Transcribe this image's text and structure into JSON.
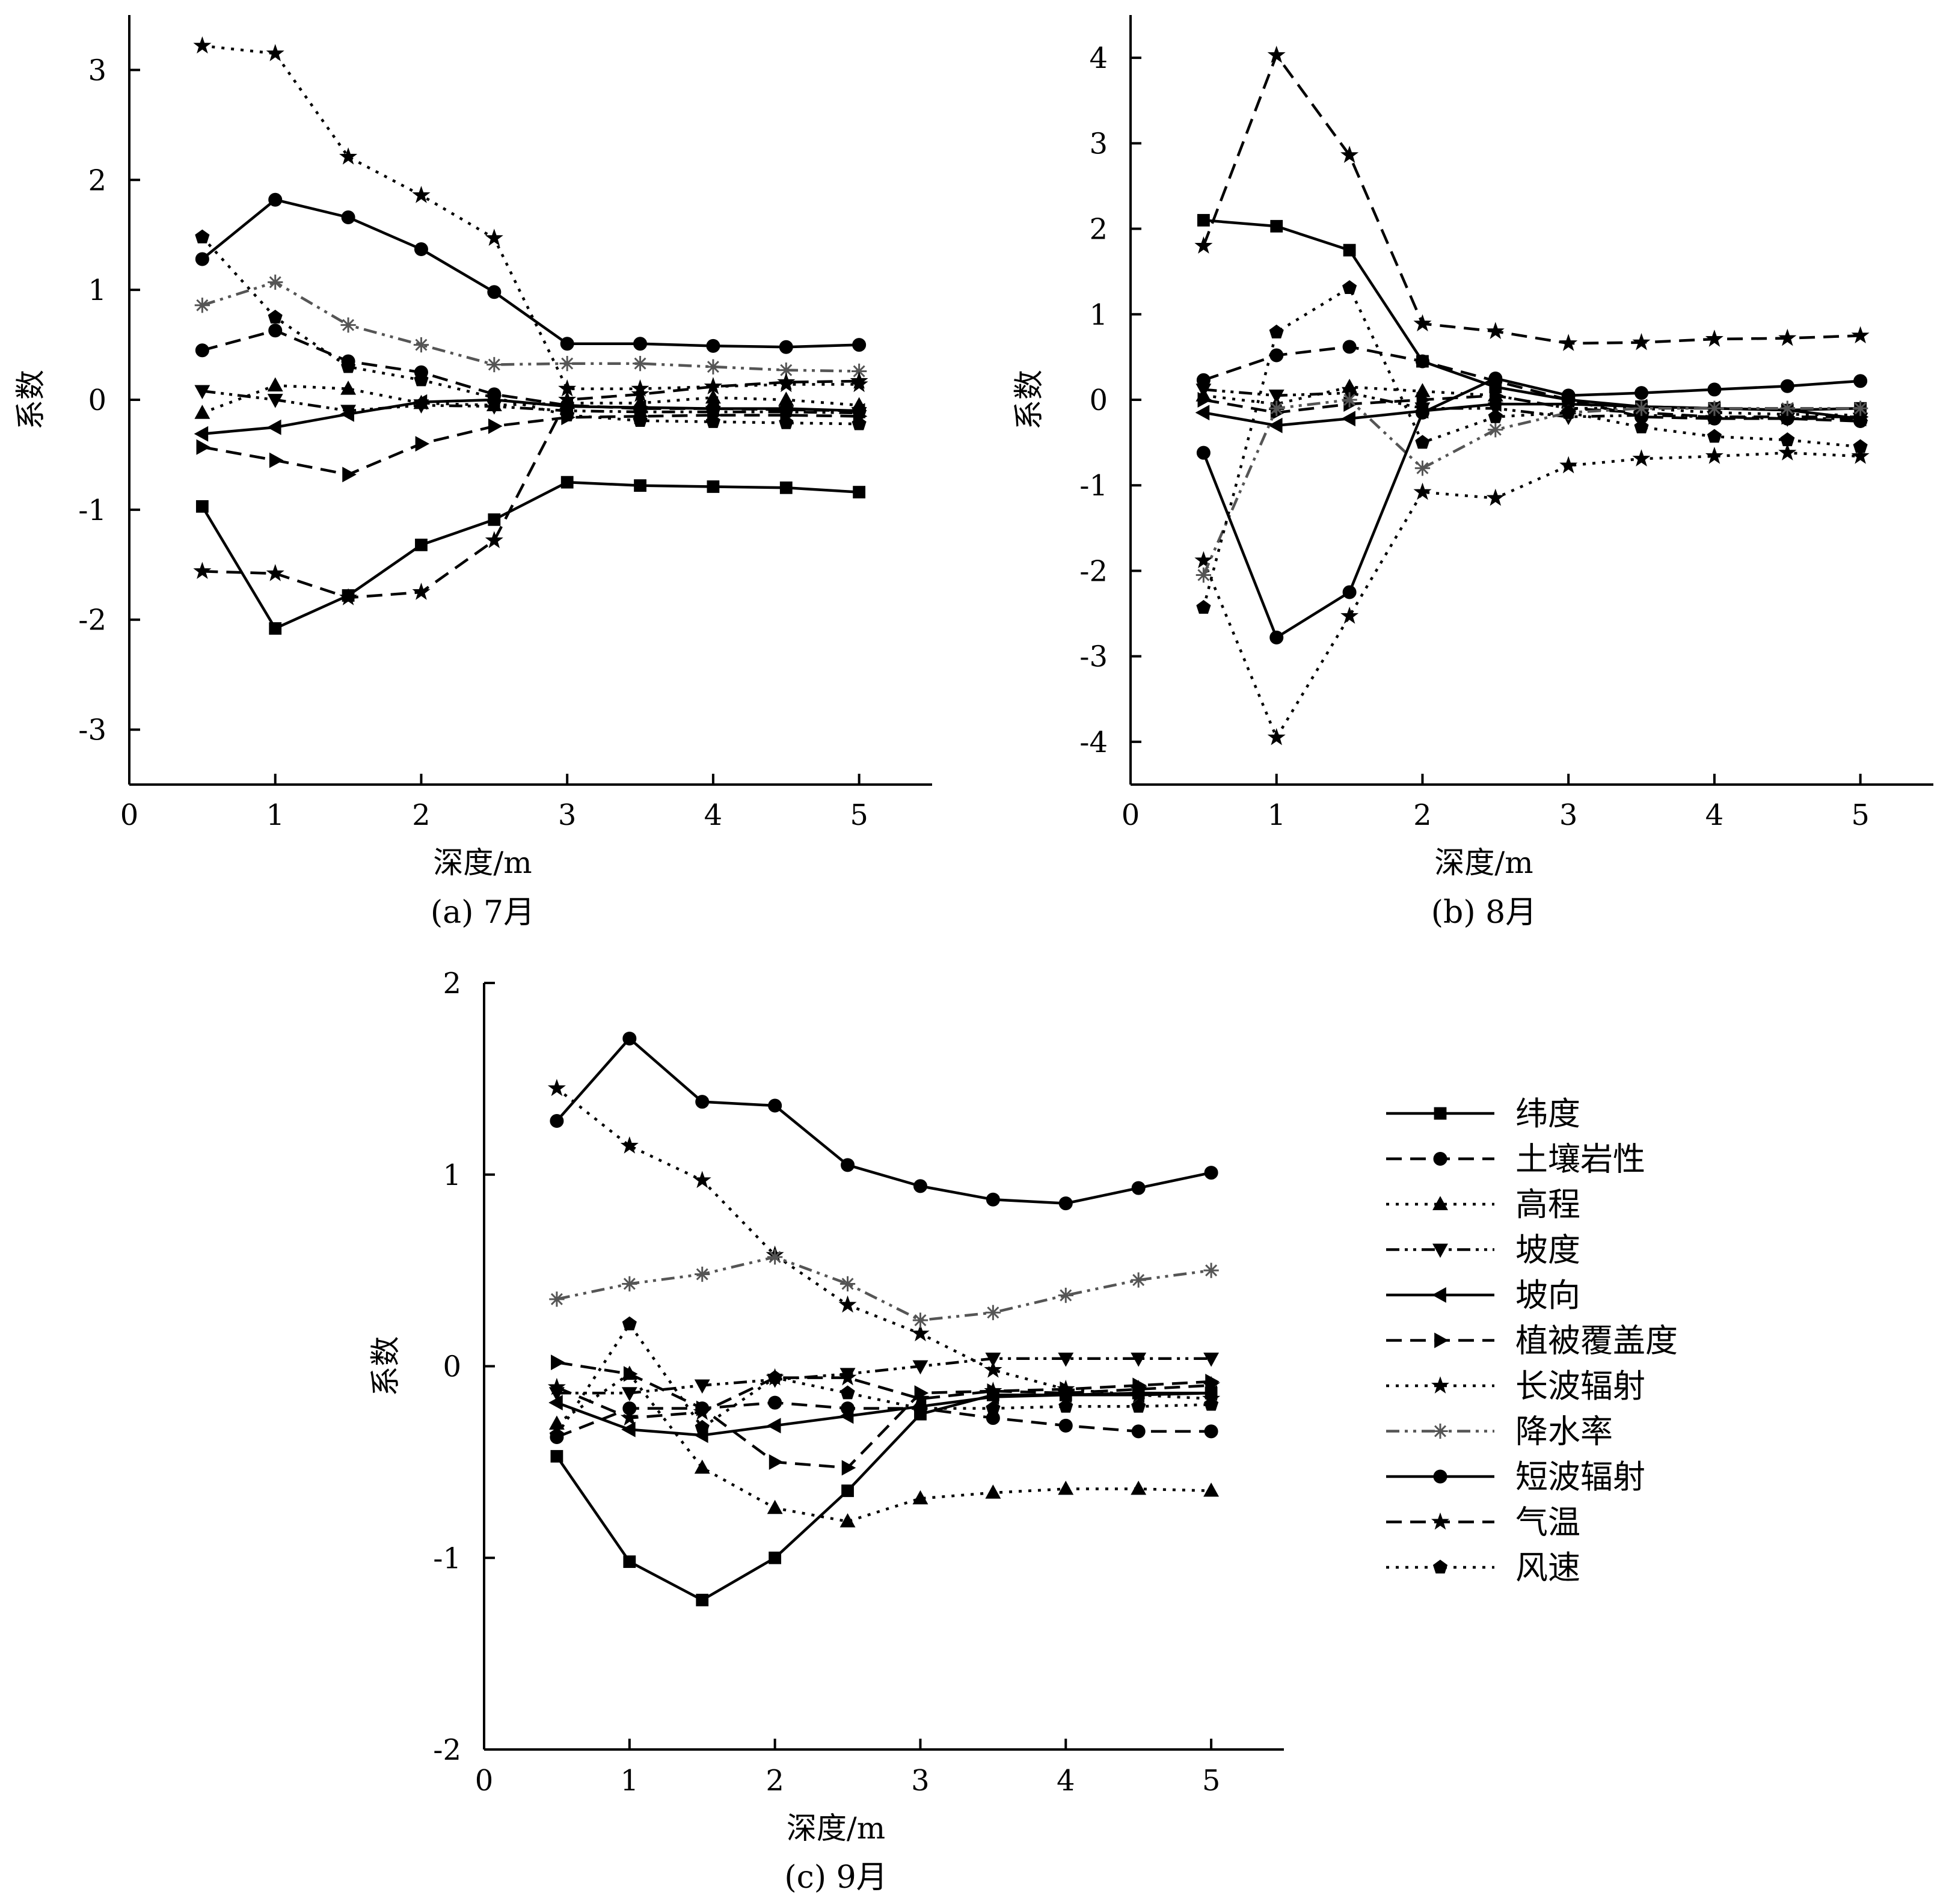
{
  "colors": {
    "ink": "#000000",
    "precip_series": "#555555",
    "background": "#ffffff"
  },
  "legend": {
    "items": [
      {
        "name": "纬度",
        "line": "solid",
        "marker": "square"
      },
      {
        "name": "土壤岩性",
        "line": "dashed",
        "marker": "circle"
      },
      {
        "name": "高程",
        "line": "dotted",
        "marker": "triangle-up"
      },
      {
        "name": "坡度",
        "line": "dashdotdot",
        "marker": "triangle-down"
      },
      {
        "name": "坡向",
        "line": "solid",
        "marker": "triangle-left"
      },
      {
        "name": "植被覆盖度",
        "line": "dashed",
        "marker": "triangle-right"
      },
      {
        "name": "长波辐射",
        "line": "dotted",
        "marker": "star"
      },
      {
        "name": "降水率",
        "line": "dashdotdot",
        "marker": "asterisk"
      },
      {
        "name": "短波辐射",
        "line": "solid",
        "marker": "circle"
      },
      {
        "name": "气温",
        "line": "dashed",
        "marker": "star"
      },
      {
        "name": "风速",
        "line": "dotted",
        "marker": "pentagon"
      }
    ]
  },
  "chart_data": [
    {
      "type": "line",
      "caption": "(a) 7月",
      "xlabel": "深度/m",
      "ylabel": "系数",
      "xlim": [
        0,
        5.5
      ],
      "ylim": [
        -3.5,
        3.5
      ],
      "xticks": [
        0,
        1,
        2,
        3,
        4,
        5
      ],
      "yticks": [
        -3,
        -2,
        -1,
        0,
        1,
        2,
        3
      ],
      "x": [
        0.5,
        1,
        1.5,
        2,
        2.5,
        3,
        3.5,
        4,
        4.5,
        5
      ],
      "series": [
        {
          "name": "纬度",
          "values": [
            -0.97,
            -2.08,
            -1.78,
            -1.32,
            -1.09,
            -0.75,
            -0.78,
            -0.79,
            -0.8,
            -0.84
          ]
        },
        {
          "name": "土壤岩性",
          "values": [
            0.45,
            0.63,
            0.35,
            0.25,
            0.05,
            -0.05,
            -0.08,
            -0.08,
            -0.09,
            -0.1
          ]
        },
        {
          "name": "高程",
          "values": [
            -0.12,
            0.13,
            0.1,
            -0.03,
            -0.05,
            -0.03,
            -0.03,
            0.02,
            0.0,
            -0.05
          ]
        },
        {
          "name": "坡度",
          "values": [
            0.08,
            0.0,
            -0.1,
            -0.05,
            -0.06,
            -0.1,
            -0.11,
            -0.11,
            -0.11,
            -0.12
          ]
        },
        {
          "name": "坡向",
          "values": [
            -0.31,
            -0.25,
            -0.13,
            -0.02,
            0.0,
            -0.06,
            -0.07,
            -0.08,
            -0.08,
            -0.1
          ]
        },
        {
          "name": "植被覆盖度",
          "values": [
            -0.43,
            -0.55,
            -0.68,
            -0.4,
            -0.24,
            -0.16,
            -0.15,
            -0.14,
            -0.14,
            -0.15
          ]
        },
        {
          "name": "长波辐射",
          "values": [
            3.22,
            3.15,
            2.21,
            1.86,
            1.47,
            0.1,
            0.1,
            0.12,
            0.14,
            0.14
          ]
        },
        {
          "name": "降水率",
          "values": [
            0.86,
            1.07,
            0.68,
            0.5,
            0.32,
            0.33,
            0.33,
            0.3,
            0.27,
            0.26
          ]
        },
        {
          "name": "短波辐射",
          "values": [
            1.28,
            1.82,
            1.66,
            1.37,
            0.98,
            0.51,
            0.51,
            0.49,
            0.48,
            0.5
          ]
        },
        {
          "name": "气温",
          "values": [
            -1.56,
            -1.58,
            -1.8,
            -1.75,
            -1.28,
            0.0,
            0.05,
            0.12,
            0.16,
            0.17
          ]
        },
        {
          "name": "风速",
          "values": [
            1.48,
            0.75,
            0.3,
            0.18,
            0.02,
            -0.14,
            -0.19,
            -0.2,
            -0.21,
            -0.22
          ]
        }
      ]
    },
    {
      "type": "line",
      "caption": "(b) 8月",
      "xlabel": "深度/m",
      "ylabel": "系数",
      "xlim": [
        0,
        5.5
      ],
      "ylim": [
        -4.5,
        4.5
      ],
      "xticks": [
        0,
        1,
        2,
        3,
        4,
        5
      ],
      "yticks": [
        -4,
        -3,
        -2,
        -1,
        0,
        1,
        2,
        3,
        4
      ],
      "x": [
        0.5,
        1,
        1.5,
        2,
        2.5,
        3,
        3.5,
        4,
        4.5,
        5
      ],
      "series": [
        {
          "name": "纬度",
          "values": [
            2.1,
            2.03,
            1.75,
            0.45,
            0.15,
            0.0,
            -0.08,
            -0.1,
            -0.12,
            -0.1
          ]
        },
        {
          "name": "土壤岩性",
          "values": [
            0.23,
            0.52,
            0.62,
            0.45,
            0.22,
            0.0,
            -0.2,
            -0.22,
            -0.22,
            -0.25
          ]
        },
        {
          "name": "高程",
          "values": [
            0.05,
            -0.05,
            0.15,
            0.1,
            0.05,
            -0.1,
            -0.1,
            -0.15,
            -0.17,
            -0.18
          ]
        },
        {
          "name": "坡度",
          "values": [
            0.12,
            0.05,
            0.08,
            -0.1,
            -0.1,
            -0.2,
            -0.18,
            -0.2,
            -0.22,
            -0.22
          ]
        },
        {
          "name": "坡向",
          "values": [
            -0.15,
            -0.3,
            -0.22,
            -0.13,
            -0.05,
            -0.05,
            -0.08,
            -0.1,
            -0.12,
            -0.22
          ]
        },
        {
          "name": "植被覆盖度",
          "values": [
            0.0,
            -0.15,
            -0.05,
            0.0,
            0.05,
            -0.1,
            -0.15,
            -0.2,
            -0.2,
            -0.2
          ]
        },
        {
          "name": "长波辐射",
          "values": [
            -1.88,
            -3.95,
            -2.53,
            -1.08,
            -1.15,
            -0.77,
            -0.69,
            -0.66,
            -0.62,
            -0.66
          ]
        },
        {
          "name": "降水率",
          "values": [
            -2.05,
            -0.1,
            0.0,
            -0.8,
            -0.35,
            -0.15,
            -0.1,
            -0.1,
            -0.1,
            -0.1
          ]
        },
        {
          "name": "短波辐射",
          "values": [
            -0.62,
            -2.78,
            -2.25,
            -0.15,
            0.25,
            0.05,
            0.08,
            0.12,
            0.16,
            0.22
          ]
        },
        {
          "name": "气温",
          "values": [
            1.8,
            4.03,
            2.86,
            0.89,
            0.8,
            0.66,
            0.67,
            0.71,
            0.72,
            0.75
          ]
        },
        {
          "name": "风速",
          "values": [
            -2.43,
            0.79,
            1.31,
            -0.5,
            -0.2,
            -0.15,
            -0.32,
            -0.43,
            -0.47,
            -0.55
          ]
        }
      ]
    },
    {
      "type": "line",
      "caption": "(c) 9月",
      "xlabel": "深度/m",
      "ylabel": "系数",
      "xlim": [
        0,
        5.5
      ],
      "ylim": [
        -2,
        2
      ],
      "xticks": [
        0,
        1,
        2,
        3,
        4,
        5
      ],
      "yticks": [
        -2,
        -1,
        0,
        1,
        2
      ],
      "x": [
        0.5,
        1,
        1.5,
        2,
        2.5,
        3,
        3.5,
        4,
        4.5,
        5
      ],
      "series": [
        {
          "name": "纬度",
          "values": [
            -0.47,
            -1.02,
            -1.22,
            -1.0,
            -0.65,
            -0.25,
            -0.15,
            -0.15,
            -0.14,
            -0.14
          ]
        },
        {
          "name": "土壤岩性",
          "values": [
            -0.37,
            -0.22,
            -0.22,
            -0.19,
            -0.22,
            -0.22,
            -0.27,
            -0.31,
            -0.34,
            -0.34
          ]
        },
        {
          "name": "高程",
          "values": [
            -0.3,
            -0.04,
            -0.53,
            -0.74,
            -0.81,
            -0.69,
            -0.66,
            -0.64,
            -0.64,
            -0.65
          ]
        },
        {
          "name": "坡度",
          "values": [
            -0.14,
            -0.14,
            -0.1,
            -0.07,
            -0.04,
            0.0,
            0.04,
            0.04,
            0.04,
            0.04
          ]
        },
        {
          "name": "坡向",
          "values": [
            -0.19,
            -0.33,
            -0.36,
            -0.31,
            -0.26,
            -0.21,
            -0.16,
            -0.15,
            -0.15,
            -0.14
          ]
        },
        {
          "name": "植被覆盖度",
          "values": [
            0.02,
            -0.04,
            -0.22,
            -0.5,
            -0.53,
            -0.14,
            -0.13,
            -0.12,
            -0.1,
            -0.08
          ]
        },
        {
          "name": "长波辐射",
          "values": [
            1.45,
            1.15,
            0.97,
            0.58,
            0.32,
            0.17,
            -0.02,
            -0.12,
            -0.15,
            -0.17
          ]
        },
        {
          "name": "降水率",
          "values": [
            0.35,
            0.43,
            0.48,
            0.57,
            0.43,
            0.24,
            0.28,
            0.37,
            0.45,
            0.5
          ]
        },
        {
          "name": "短波辐射",
          "values": [
            1.28,
            1.71,
            1.38,
            1.36,
            1.05,
            0.94,
            0.87,
            0.85,
            0.93,
            1.01
          ]
        },
        {
          "name": "气温",
          "values": [
            -0.11,
            -0.27,
            -0.24,
            -0.06,
            -0.06,
            -0.17,
            -0.13,
            -0.14,
            -0.12,
            -0.1
          ]
        },
        {
          "name": "风速",
          "values": [
            -0.36,
            0.22,
            -0.32,
            -0.06,
            -0.14,
            -0.22,
            -0.22,
            -0.21,
            -0.21,
            -0.2
          ]
        }
      ]
    }
  ]
}
